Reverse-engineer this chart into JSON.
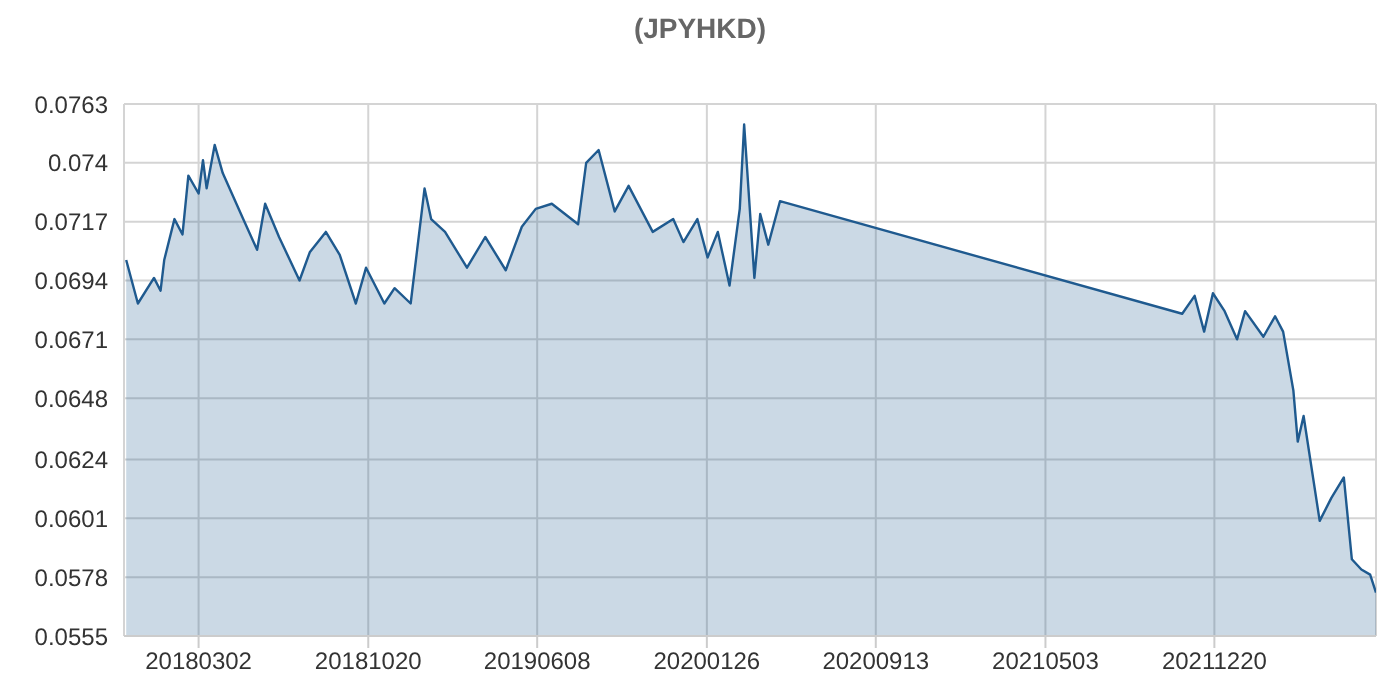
{
  "chart_data": {
    "type": "area",
    "title": "(JPYHKD)",
    "x": [
      "2017-11-23",
      "2017-12-09",
      "2017-12-31",
      "2018-01-09",
      "2018-01-14",
      "2018-01-28",
      "2018-02-08",
      "2018-02-16",
      "2018-03-02",
      "2018-03-08",
      "2018-03-13",
      "2018-03-24",
      "2018-04-04",
      "2018-05-02",
      "2018-05-21",
      "2018-06-01",
      "2018-06-20",
      "2018-07-18",
      "2018-08-01",
      "2018-08-23",
      "2018-09-11",
      "2018-10-03",
      "2018-10-17",
      "2018-11-11",
      "2018-11-25",
      "2018-12-17",
      "2019-01-05",
      "2019-01-14",
      "2019-02-02",
      "2019-03-04",
      "2019-03-29",
      "2019-04-26",
      "2019-05-18",
      "2019-06-06",
      "2019-06-28",
      "2019-08-03",
      "2019-08-14",
      "2019-08-31",
      "2019-09-22",
      "2019-10-11",
      "2019-11-13",
      "2019-12-11",
      "2019-12-25",
      "2020-01-13",
      "2020-01-27",
      "2020-02-10",
      "2020-02-26",
      "2020-03-11",
      "2020-03-17",
      "2020-03-31",
      "2020-04-08",
      "2020-04-19",
      "2020-05-05",
      "2021-11-06",
      "2021-11-23",
      "2021-12-06",
      "2021-12-18",
      "2022-01-03",
      "2022-01-20",
      "2022-01-31",
      "2022-02-25",
      "2022-03-13",
      "2022-03-24",
      "2022-04-07",
      "2022-04-13",
      "2022-04-21",
      "2022-05-13",
      "2022-05-29",
      "2022-06-15",
      "2022-06-26",
      "2022-07-09",
      "2022-07-21",
      "2022-07-29"
    ],
    "series": [
      {
        "color": "#1f5a8f",
        "values": [
          0.0702,
          0.0685,
          0.0695,
          0.069,
          0.0702,
          0.0718,
          0.0712,
          0.0735,
          0.0728,
          0.0741,
          0.073,
          0.0747,
          0.0736,
          0.0718,
          0.0706,
          0.0724,
          0.0711,
          0.0694,
          0.0705,
          0.0713,
          0.0704,
          0.0685,
          0.0699,
          0.0685,
          0.0691,
          0.0685,
          0.073,
          0.0718,
          0.0713,
          0.0699,
          0.0711,
          0.0698,
          0.0715,
          0.0722,
          0.0724,
          0.0716,
          0.074,
          0.0745,
          0.0721,
          0.0731,
          0.0713,
          0.0718,
          0.0709,
          0.0718,
          0.0703,
          0.0713,
          0.0692,
          0.0722,
          0.0755,
          0.0695,
          0.072,
          0.0708,
          0.0725,
          0.0681,
          0.0688,
          0.0674,
          0.0689,
          0.0682,
          0.0671,
          0.0682,
          0.0672,
          0.068,
          0.0674,
          0.0651,
          0.0631,
          0.0641,
          0.06,
          0.0609,
          0.0617,
          0.0585,
          0.0581,
          0.0579,
          0.0572
        ]
      }
    ],
    "xlim": [
      "2017-11-20",
      "2022-07-29"
    ],
    "xticks": [
      {
        "value": "2018-03-02",
        "label": "20180302"
      },
      {
        "value": "2018-10-20",
        "label": "20181020"
      },
      {
        "value": "2019-06-08",
        "label": "20190608"
      },
      {
        "value": "2020-01-26",
        "label": "20200126"
      },
      {
        "value": "2020-09-13",
        "label": "20200913"
      },
      {
        "value": "2021-05-03",
        "label": "20210503"
      },
      {
        "value": "2021-12-20",
        "label": "20211220"
      }
    ],
    "ylim": [
      0.0555,
      0.0763
    ],
    "yticks": [
      0.0555,
      0.0578,
      0.0601,
      0.0624,
      0.0648,
      0.0671,
      0.0694,
      0.0717,
      0.074,
      0.0763
    ],
    "grid": true,
    "legend": false,
    "marker": "none",
    "line_style": "solid"
  }
}
